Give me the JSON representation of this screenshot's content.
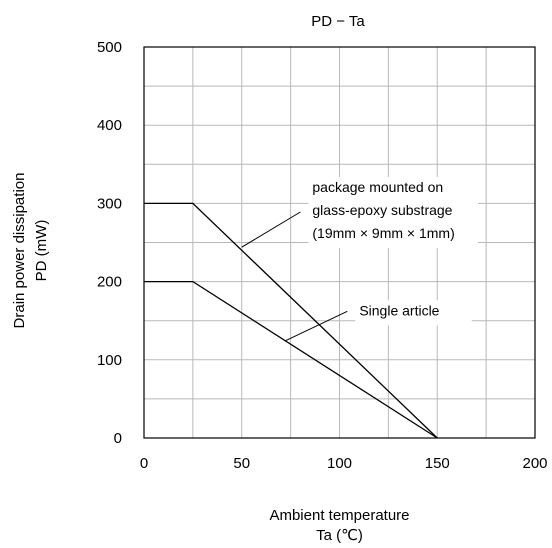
{
  "chart_data": {
    "type": "line",
    "title": "PD − Ta",
    "xlabel_lines": [
      "Ambient temperature",
      "Ta (℃)"
    ],
    "ylabel_lines": [
      "Drain power dissipation",
      "PD (mW)"
    ],
    "xlim": [
      0,
      200
    ],
    "ylim": [
      0,
      500
    ],
    "x_ticks": [
      0,
      50,
      100,
      150,
      200
    ],
    "y_ticks": [
      0,
      100,
      200,
      300,
      400,
      500
    ],
    "x_minor_step": 25,
    "y_minor_step": 50,
    "grid": true,
    "series": [
      {
        "x": [
          0,
          25,
          150
        ],
        "y": [
          300,
          300,
          0
        ]
      },
      {
        "x": [
          0,
          25,
          150
        ],
        "y": [
          200,
          200,
          0
        ]
      }
    ],
    "annotations": [
      {
        "lines": [
          "package mounted on",
          "glass-epoxy substrage",
          "(19mm × 9mm × 1mm)"
        ],
        "point": [
          50,
          244
        ],
        "elbow": [
          80,
          289
        ]
      },
      {
        "lines": [
          "Single article"
        ],
        "point": [
          72,
          124
        ],
        "elbow": [
          104,
          162
        ]
      }
    ]
  }
}
